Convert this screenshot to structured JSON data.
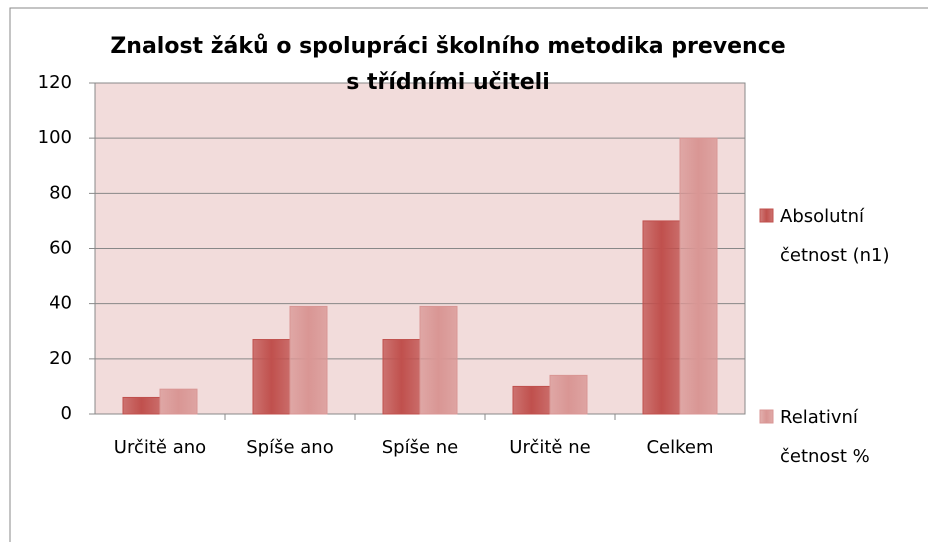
{
  "chart_data": {
    "type": "bar",
    "title_lines": [
      "Znalost žáků o spolupráci školního metodika prevence",
      "s třídními učiteli"
    ],
    "categories": [
      "Určitě ano",
      "Spíše ano",
      "Spíše ne",
      "Určitě ne",
      "Celkem"
    ],
    "series": [
      {
        "name": "Absolutní četnost (n1)",
        "color": "#c0504d",
        "values": [
          6,
          27,
          27,
          10,
          70
        ]
      },
      {
        "name": "Relativní četnost %",
        "color": "#d99694",
        "values": [
          9,
          39,
          39,
          14,
          100
        ]
      }
    ],
    "ylim": [
      0,
      120
    ],
    "yticks": [
      0,
      20,
      40,
      60,
      80,
      100,
      120
    ],
    "grid": true,
    "legend": "right"
  }
}
